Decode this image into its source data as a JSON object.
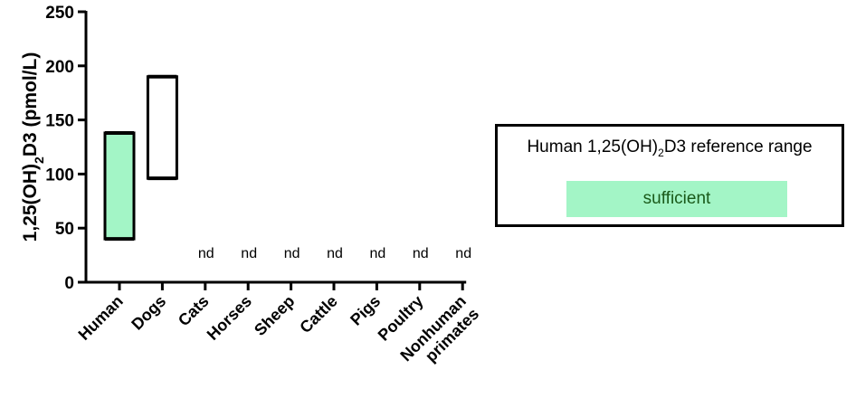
{
  "chart_data": {
    "type": "range-bar",
    "ylabel_parts": [
      "1,25(OH)",
      "2",
      "D3 (pmol/L)"
    ],
    "ylim": [
      0,
      250
    ],
    "yticks": [
      0,
      50,
      100,
      150,
      200,
      250
    ],
    "categories": [
      "Human",
      "Dogs",
      "Cats",
      "Horses",
      "Sheep",
      "Cattle",
      "Pigs",
      "Poultry",
      "Nonhuman primates"
    ],
    "category_lines": [
      [
        "Human"
      ],
      [
        "Dogs"
      ],
      [
        "Cats"
      ],
      [
        "Horses"
      ],
      [
        "Sheep"
      ],
      [
        "Cattle"
      ],
      [
        "Pigs"
      ],
      [
        "Poultry"
      ],
      [
        "Nonhuman",
        "primates"
      ]
    ],
    "ranges": [
      {
        "category": "Human",
        "low": 40,
        "high": 138,
        "fill": "#a3f5c6"
      },
      {
        "category": "Dogs",
        "low": 96,
        "high": 190,
        "fill": "#ffffff"
      },
      {
        "category": "Cats",
        "label": "nd"
      },
      {
        "category": "Horses",
        "label": "nd"
      },
      {
        "category": "Sheep",
        "label": "nd"
      },
      {
        "category": "Cattle",
        "label": "nd"
      },
      {
        "category": "Pigs",
        "label": "nd"
      },
      {
        "category": "Poultry",
        "label": "nd"
      },
      {
        "category": "Nonhuman primates",
        "label": "nd"
      }
    ],
    "legend": {
      "title_parts": [
        "Human 1,25(OH)",
        "2",
        "D3 reference range"
      ],
      "entries": [
        {
          "label": "sufficient",
          "color": "#a3f5c6"
        }
      ],
      "placement": "right"
    }
  }
}
